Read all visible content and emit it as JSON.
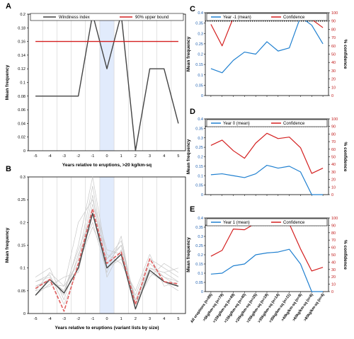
{
  "chart_data": [
    {
      "panel": "A",
      "type": "line",
      "x": [
        -5,
        -4,
        -3,
        -2,
        -1,
        0,
        1,
        2,
        3,
        4,
        5
      ],
      "xlabel": "Years relative to eruptions, >20 kg/km-sq",
      "ylabel": "Mean frequency",
      "ylim": [
        0,
        0.2
      ],
      "yticks": [
        "0",
        "0.02",
        "0.04",
        "0.06",
        "0.08",
        "0.1",
        "0.12",
        "0.14",
        "0.16",
        "0.18",
        "0.2"
      ],
      "highlight_band": [
        -0.5,
        0.5
      ],
      "legend": "top",
      "series": [
        {
          "name": "Windiness index",
          "color": "#444444",
          "values": [
            0.08,
            0.08,
            0.08,
            0.08,
            0.2,
            0.12,
            0.2,
            0,
            0.12,
            0.12,
            0.04
          ]
        },
        {
          "name": "90% upper bound",
          "color": "#d42020",
          "values": [
            0.16,
            0.16,
            0.16,
            0.16,
            0.16,
            0.16,
            0.16,
            0.16,
            0.16,
            0.16,
            0.16
          ]
        }
      ]
    },
    {
      "panel": "B",
      "type": "line",
      "x": [
        -5,
        -4,
        -3,
        -2,
        -1,
        0,
        1,
        2,
        3,
        4,
        5
      ],
      "xlabel": "Years relative to eruptions (variant lists by size)",
      "ylabel": "Mean frequency",
      "ylim": [
        0,
        0.3
      ],
      "yticks": [
        "0",
        "0.05",
        "0.1",
        "0.15",
        "0.2",
        "0.25",
        "0.3"
      ],
      "highlight_band": [
        -0.5,
        0.5
      ],
      "series": [
        {
          "color": "#444444",
          "values": [
            0.04,
            0.075,
            0.045,
            0.1,
            0.22,
            0.1,
            0.13,
            0.01,
            0.095,
            0.07,
            0.06
          ]
        },
        {
          "color": "#e06060",
          "dashed": true,
          "values": [
            0.055,
            0.075,
            0.005,
            0.11,
            0.23,
            0.11,
            0.135,
            0.02,
            0.12,
            0.07,
            0.065
          ]
        },
        {
          "color": "#c8c8c8",
          "values": [
            0.07,
            0.08,
            0.04,
            0.15,
            0.3,
            0.12,
            0.15,
            0.02,
            0.1,
            0.09,
            0.07
          ]
        },
        {
          "color": "#c8c8c8",
          "values": [
            0.05,
            0.09,
            0.06,
            0.2,
            0.25,
            0.14,
            0.13,
            0.03,
            0.11,
            0.08,
            0.06
          ]
        },
        {
          "color": "#c8c8c8",
          "values": [
            0.06,
            0.07,
            0.05,
            0.12,
            0.28,
            0.1,
            0.12,
            0.04,
            0.12,
            0.1,
            0.08
          ]
        },
        {
          "color": "#c8c8c8",
          "values": [
            0.08,
            0.1,
            0.03,
            0.13,
            0.2,
            0.09,
            0.17,
            0.01,
            0.09,
            0.07,
            0.05
          ]
        },
        {
          "color": "#c8c8c8",
          "values": [
            0.05,
            0.06,
            0.08,
            0.09,
            0.24,
            0.13,
            0.11,
            0.05,
            0.13,
            0.06,
            0.07
          ]
        },
        {
          "color": "#c8c8c8",
          "values": [
            0.07,
            0.085,
            0.02,
            0.1,
            0.26,
            0.08,
            0.14,
            0.02,
            0.08,
            0.11,
            0.09
          ]
        },
        {
          "color": "#c8c8c8",
          "values": [
            0.06,
            0.075,
            0.05,
            0.14,
            0.22,
            0.11,
            0.15,
            0.03,
            0.1,
            0.09,
            0.1
          ]
        },
        {
          "color": "#c8c8c8",
          "values": [
            0.04,
            0.065,
            0.06,
            0.11,
            0.19,
            0.12,
            0.16,
            0.02,
            0.1,
            0.08,
            0.07
          ]
        }
      ]
    },
    {
      "panel": "C",
      "type": "line",
      "categories": [
        "All eruptions (n=85)",
        ">5kg/km-sq (n=79)",
        ">10kg/km-sq (n=49)",
        ">15kg/km-sq (n=40)",
        ">20kg/km-sq (n=25)",
        ">25kg/km-sq (n=19)",
        ">30kg/km-sq (n=14)",
        ">35kg/km-sq (n=11)",
        ">40kg/km-sq (n=8)",
        ">60kg/km-sq (n=6)",
        ">80kg/km-sq (n=4)"
      ],
      "ylabel": "Mean frequency",
      "y2label": "% confidence",
      "ylim": [
        0,
        0.4
      ],
      "y2lim": [
        0,
        100
      ],
      "yticks": [
        "0",
        "0.05",
        "0.1",
        "0.15",
        "0.2",
        "0.25",
        "0.3",
        "0.35",
        "0.4"
      ],
      "y2ticks": [
        "0",
        "10",
        "20",
        "30",
        "40",
        "50",
        "60",
        "70",
        "80",
        "90",
        "100"
      ],
      "reference_line": 90,
      "series": [
        {
          "name": "Year -1 (mean)",
          "color": "#2080d0",
          "axis": "left",
          "values": [
            0.13,
            0.11,
            0.17,
            0.21,
            0.2,
            0.26,
            0.215,
            0.23,
            0.38,
            0.34,
            0.25
          ]
        },
        {
          "name": "Confidence",
          "color": "#d42020",
          "axis": "right",
          "values": [
            86,
            60,
            94,
            96,
            93,
            96,
            92,
            93,
            95,
            92,
            82
          ]
        }
      ]
    },
    {
      "panel": "D",
      "type": "line",
      "categories": [
        "All eruptions (n=85)",
        ">5kg/km-sq (n=79)",
        ">10kg/km-sq (n=49)",
        ">15kg/km-sq (n=40)",
        ">20kg/km-sq (n=25)",
        ">25kg/km-sq (n=19)",
        ">30kg/km-sq (n=14)",
        ">35kg/km-sq (n=11)",
        ">40kg/km-sq (n=8)",
        ">60kg/km-sq (n=6)",
        ">80kg/km-sq (n=4)"
      ],
      "ylabel": "Mean frequency",
      "y2label": "% confidence",
      "ylim": [
        0,
        0.4
      ],
      "y2lim": [
        0,
        100
      ],
      "yticks": [
        "0",
        "0.05",
        "0.1",
        "0.15",
        "0.2",
        "0.25",
        "0.3",
        "0.35",
        "0.4"
      ],
      "y2ticks": [
        "0",
        "10",
        "20",
        "30",
        "40",
        "50",
        "60",
        "70",
        "80",
        "90",
        "100"
      ],
      "reference_line": 90,
      "series": [
        {
          "name": "Year 0 (mean)",
          "color": "#2080d0",
          "axis": "left",
          "values": [
            0.105,
            0.11,
            0.1,
            0.09,
            0.11,
            0.155,
            0.14,
            0.15,
            0.12,
            0.0,
            0.0
          ]
        },
        {
          "name": "Confidence",
          "color": "#d42020",
          "axis": "right",
          "values": [
            65,
            72,
            58,
            48,
            68,
            81,
            74,
            76,
            62,
            28,
            35
          ]
        }
      ]
    },
    {
      "panel": "E",
      "type": "line",
      "categories": [
        "All eruptions (n=85)",
        ">5kg/km-sq (n=79)",
        ">10kg/km-sq (n=49)",
        ">15kg/km-sq (n=40)",
        ">20kg/km-sq (n=25)",
        ">25kg/km-sq (n=19)",
        ">30kg/km-sq (n=14)",
        ">35kg/km-sq (n=11)",
        ">40kg/km-sq (n=8)",
        ">60kg/km-sq (n=6)",
        ">80kg/km-sq (n=4)"
      ],
      "ylabel": "Mean frequency",
      "y2label": "% confidence",
      "ylim": [
        0,
        0.4
      ],
      "y2lim": [
        0,
        100
      ],
      "yticks": [
        "0",
        "0.05",
        "0.1",
        "0.15",
        "0.2",
        "0.25",
        "0.3",
        "0.35",
        "0.4"
      ],
      "y2ticks": [
        "0",
        "10",
        "20",
        "30",
        "40",
        "50",
        "60",
        "70",
        "80",
        "90",
        "100"
      ],
      "reference_line": 90,
      "series": [
        {
          "name": "Year 1 (mean)",
          "color": "#2080d0",
          "axis": "left",
          "values": [
            0.095,
            0.1,
            0.14,
            0.15,
            0.2,
            0.21,
            0.215,
            0.23,
            0.15,
            0.0,
            0.0
          ]
        },
        {
          "name": "Confidence",
          "color": "#d42020",
          "axis": "right",
          "values": [
            48,
            56,
            85,
            84,
            93,
            92,
            91,
            92,
            58,
            28,
            33
          ]
        }
      ]
    }
  ]
}
